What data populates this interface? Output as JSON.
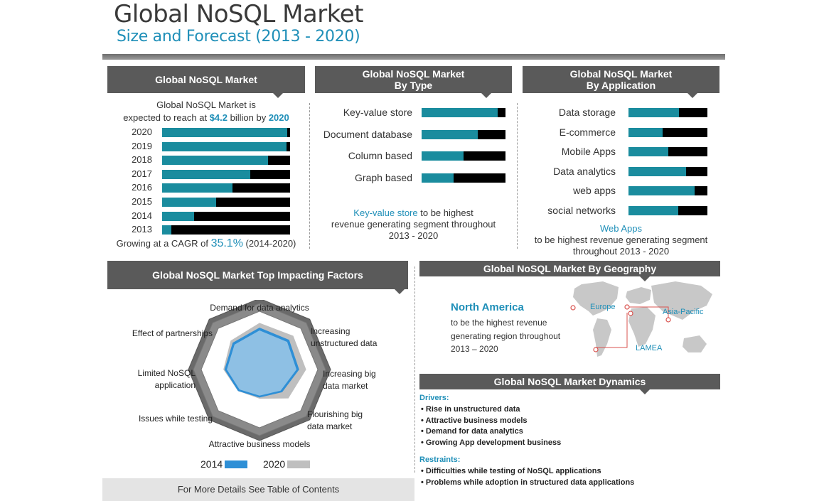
{
  "title": "Global NoSQL Market",
  "subtitle": "Size and Forecast (2013 - 2020)",
  "market": {
    "header": "Global NoSQL Market",
    "line1": "Global NoSQL Market is",
    "line2_pre": "expected to reach at ",
    "line2_value": "$4.2",
    "line2_mid": " billion by ",
    "line2_year": "2020",
    "cagr_pre": "Growing at a CAGR of ",
    "cagr_value": "35.1%",
    "cagr_post": " (2014-2020)"
  },
  "by_type": {
    "header_line1": "Global NoSQL Market",
    "header_line2": "By Type",
    "note_highlight": "Key-value store",
    "note_line1_post": " to be highest",
    "note_line2": "revenue generating segment throughout",
    "note_line3": "2013 - 2020"
  },
  "by_application": {
    "header_line1": "Global NoSQL Market",
    "header_line2": "By Application",
    "note_highlight": "Web Apps",
    "note_line2": "to be highest revenue generating segment",
    "note_line3": "throughout 2013 - 2020"
  },
  "factors": {
    "header": "Global NoSQL Market Top Impacting Factors",
    "footer": "For More Details See Table of Contents"
  },
  "geography": {
    "header": "Global NoSQL Market By Geography",
    "highlight": "North America",
    "line1": "to be the highest revenue",
    "line2": "generating region throughout",
    "line3": "2013 – 2020",
    "regions": [
      "Europe",
      "Asia-Pacific",
      "LAMEA"
    ]
  },
  "dynamics": {
    "header": "Global NoSQL Market Dynamics",
    "drivers_label": "Drivers:",
    "drivers": [
      "• Rise in unstructured data",
      "• Attractive business models",
      "• Demand for data analytics",
      "• Growing App development business"
    ],
    "restraints_label": "Restraints:",
    "restraints": [
      "• Difficulties while testing of NoSQL applications",
      "• Problems while adoption in structured data applications"
    ]
  },
  "colors": {
    "accent": "#1a8c9e",
    "dark": "#000000",
    "header_bg": "#5a5a5a",
    "text_blue": "#1f8fb8",
    "radar_2014": "#2e8fd6",
    "radar_2020": "#bfbfbf"
  },
  "chart_data": [
    {
      "type": "bar",
      "categories": [
        "2020",
        "2019",
        "2018",
        "2017",
        "2016",
        "2015",
        "2014",
        "2013"
      ],
      "values": [
        0.98,
        0.97,
        0.83,
        0.69,
        0.55,
        0.42,
        0.25,
        0.07
      ],
      "ylim": [
        0,
        1
      ]
    },
    {
      "type": "bar",
      "categories": [
        "Key-value store",
        "Document database",
        "Column based",
        "Graph based"
      ],
      "values": [
        0.91,
        0.67,
        0.5,
        0.38
      ],
      "ylim": [
        0,
        1
      ]
    },
    {
      "type": "bar",
      "categories": [
        "Data storage",
        "E-commerce",
        "Mobile Apps",
        "Data analytics",
        "web apps",
        "social networks"
      ],
      "values": [
        0.64,
        0.43,
        0.5,
        0.73,
        0.84,
        0.63
      ],
      "ylim": [
        0,
        1
      ]
    },
    {
      "type": "radar",
      "categories": [
        "Demand for data analytics",
        "Increasing unstructured data",
        "Increasing big data market",
        "Flourishing big data market",
        "Attractive business models",
        "Issues while testing",
        "Limited NoSQL application",
        "Effect of partnerships"
      ],
      "series": [
        {
          "name": "2014",
          "values": [
            0.72,
            0.72,
            0.68,
            0.55,
            0.48,
            0.52,
            0.6,
            0.65
          ]
        },
        {
          "name": "2020",
          "values": [
            0.8,
            0.82,
            0.8,
            0.7,
            0.5,
            0.52,
            0.62,
            0.7
          ]
        }
      ]
    }
  ]
}
